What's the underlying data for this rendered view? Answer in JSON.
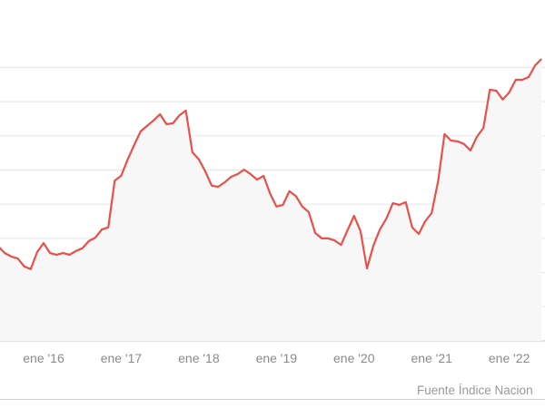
{
  "chart_data": {
    "type": "line",
    "title": "",
    "xlabel": "",
    "ylabel": "",
    "x_tick_labels": [
      "ene '16",
      "ene '17",
      "ene '18",
      "ene '19",
      "ene '20",
      "ene '21",
      "ene '22"
    ],
    "x_start": "2015-06",
    "x_step": "month",
    "y_gridlines": 8,
    "ylim": [
      0,
      8.3
    ],
    "grid": true,
    "y_axis_labels_visible": false,
    "legend": "none",
    "series": [
      {
        "color": "#e8504a",
        "fill_color": "#f7f7f7",
        "values": [
          2.76,
          2.57,
          2.47,
          2.41,
          2.18,
          2.1,
          2.6,
          2.86,
          2.57,
          2.52,
          2.57,
          2.52,
          2.63,
          2.71,
          2.92,
          3.02,
          3.26,
          3.32,
          4.69,
          4.83,
          5.31,
          5.73,
          6.13,
          6.29,
          6.45,
          6.63,
          6.34,
          6.37,
          6.6,
          6.74,
          5.52,
          5.31,
          4.96,
          4.54,
          4.51,
          4.64,
          4.8,
          4.88,
          5.01,
          4.88,
          4.72,
          4.83,
          4.32,
          3.93,
          3.98,
          4.38,
          4.24,
          3.93,
          3.77,
          3.16,
          3.0,
          3.0,
          2.94,
          2.81,
          3.24,
          3.66,
          3.21,
          2.12,
          2.79,
          3.26,
          3.58,
          4.03,
          3.98,
          4.06,
          3.32,
          3.13,
          3.5,
          3.74,
          4.67,
          6.05,
          5.86,
          5.84,
          5.76,
          5.57,
          5.97,
          6.23,
          7.35,
          7.32,
          7.06,
          7.27,
          7.64,
          7.64,
          7.72,
          8.06,
          8.25
        ]
      }
    ]
  },
  "source": "Fuente Índice Nacion"
}
